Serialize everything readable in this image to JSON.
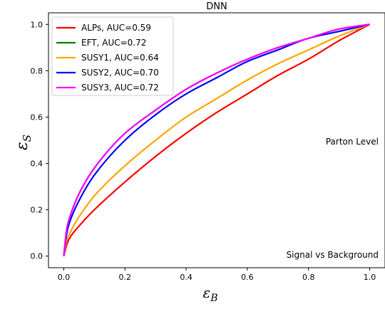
{
  "chart_data": {
    "type": "line",
    "title": "DNN",
    "xlabel": "ε",
    "xlabel_sub": "B",
    "ylabel": "ε",
    "ylabel_sub": "S",
    "xlim": [
      -0.05,
      1.05
    ],
    "ylim": [
      -0.05,
      1.05
    ],
    "xticks": [
      0.0,
      0.2,
      0.4,
      0.6,
      0.8,
      1.0
    ],
    "yticks": [
      0.0,
      0.2,
      0.4,
      0.6,
      0.8,
      1.0
    ],
    "xtick_labels": [
      "0.0",
      "0.2",
      "0.4",
      "0.6",
      "0.8",
      "1.0"
    ],
    "ytick_labels": [
      "0.0",
      "0.2",
      "0.4",
      "0.6",
      "0.8",
      "1.0"
    ],
    "grid": false,
    "legend_position": "top-left",
    "annotations": [
      "Parton Level",
      "Signal vs Background"
    ],
    "series": [
      {
        "name": "ALPs, AUC=0.59",
        "color": "#ff0000",
        "x": [
          0,
          0.01,
          0.02,
          0.05,
          0.1,
          0.2,
          0.3,
          0.4,
          0.5,
          0.6,
          0.7,
          0.8,
          0.9,
          1.0
        ],
        "y": [
          0,
          0.05,
          0.08,
          0.13,
          0.2,
          0.32,
          0.43,
          0.53,
          0.62,
          0.7,
          0.78,
          0.85,
          0.93,
          1.0
        ]
      },
      {
        "name": "EFT, AUC=0.72",
        "color": "#008000",
        "x": [
          0,
          0.01,
          0.02,
          0.05,
          0.1,
          0.2,
          0.3,
          0.4,
          0.5,
          0.6,
          0.7,
          0.8,
          0.9,
          1.0
        ],
        "y": [
          0,
          0.12,
          0.17,
          0.27,
          0.38,
          0.53,
          0.63,
          0.72,
          0.79,
          0.85,
          0.9,
          0.94,
          0.98,
          1.0
        ]
      },
      {
        "name": "SUSY1, AUC=0.64",
        "color": "#ffa500",
        "x": [
          0,
          0.01,
          0.02,
          0.05,
          0.1,
          0.2,
          0.3,
          0.4,
          0.5,
          0.6,
          0.7,
          0.8,
          0.9,
          1.0
        ],
        "y": [
          0,
          0.07,
          0.1,
          0.17,
          0.26,
          0.39,
          0.5,
          0.6,
          0.68,
          0.76,
          0.83,
          0.89,
          0.95,
          1.0
        ]
      },
      {
        "name": "SUSY2, AUC=0.70",
        "color": "#0000ff",
        "x": [
          0,
          0.01,
          0.02,
          0.05,
          0.1,
          0.2,
          0.3,
          0.4,
          0.5,
          0.6,
          0.7,
          0.8,
          0.9,
          1.0
        ],
        "y": [
          0,
          0.1,
          0.15,
          0.24,
          0.35,
          0.5,
          0.61,
          0.7,
          0.77,
          0.84,
          0.89,
          0.94,
          0.97,
          1.0
        ]
      },
      {
        "name": "SUSY3, AUC=0.72",
        "color": "#ff00ff",
        "x": [
          0,
          0.01,
          0.02,
          0.05,
          0.1,
          0.2,
          0.3,
          0.4,
          0.5,
          0.6,
          0.7,
          0.8,
          0.9,
          1.0
        ],
        "y": [
          0,
          0.12,
          0.17,
          0.27,
          0.38,
          0.53,
          0.63,
          0.72,
          0.79,
          0.85,
          0.9,
          0.94,
          0.98,
          1.0
        ]
      }
    ]
  }
}
